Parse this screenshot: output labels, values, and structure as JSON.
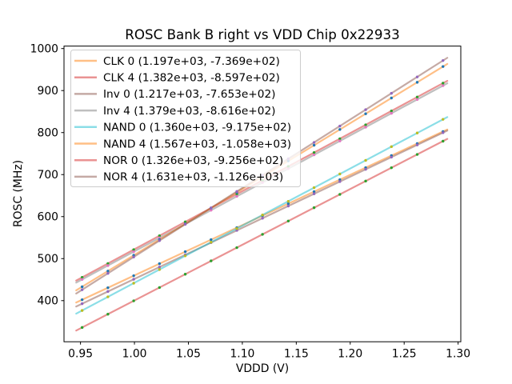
{
  "figure_bg": "#ffffff",
  "chart_data": {
    "type": "scatter",
    "title": "ROSC Bank B right vs VDD Chip 0x22933",
    "xlabel": "VDDD (V)",
    "ylabel": "ROSC (MHz)",
    "grid": false,
    "legend_position": "upper-left",
    "xlim": [
      0.9347,
      1.3025
    ],
    "ylim": [
      302.1,
      1005.9
    ],
    "xticks": {
      "values": [
        0.95,
        1.0,
        1.05,
        1.1,
        1.15,
        1.2,
        1.25,
        1.3
      ],
      "labels": [
        "0.95",
        "1.00",
        "1.05",
        "1.10",
        "1.15",
        "1.20",
        "1.25",
        "1.30"
      ]
    },
    "yticks": {
      "values": [
        400,
        500,
        600,
        700,
        800,
        900,
        1000
      ],
      "labels": [
        "400",
        "500",
        "600",
        "700",
        "800",
        "900",
        "1000"
      ]
    },
    "line_alpha": 0.5,
    "fit_x": [
      0.946,
      1.29
    ],
    "x": [
      0.9515,
      0.9754,
      0.9993,
      1.0232,
      1.0471,
      1.071,
      1.0949,
      1.1187,
      1.1426,
      1.1665,
      1.1904,
      1.2143,
      1.2382,
      1.2621,
      1.286
    ],
    "series": [
      {
        "name": "CLK 0",
        "legend_label": "CLK 0 (1.197e+03, -7.369e+02)",
        "fit_slope": 1197,
        "fit_intercept": -736.9,
        "line_color": "#ff7f0e",
        "marker_color": "#1f77b4",
        "y": [
          402.1,
          430.7,
          459.3,
          487.9,
          516.5,
          545.1,
          573.7,
          602.2,
          630.8,
          659.4,
          688.0,
          716.6,
          745.2,
          773.8,
          802.4
        ]
      },
      {
        "name": "CLK 4",
        "legend_label": "CLK 4 (1.382e+03, -8.597e+02)",
        "fit_slope": 1382,
        "fit_intercept": -859.7,
        "line_color": "#d62728",
        "marker_color": "#2ca02c",
        "y": [
          455.3,
          488.3,
          521.3,
          554.4,
          587.4,
          620.4,
          653.5,
          686.3,
          719.4,
          752.4,
          785.4,
          818.5,
          851.5,
          884.5,
          917.6
        ]
      },
      {
        "name": "Inv 0",
        "legend_label": "Inv 0 (1.217e+03, -7.653e+02)",
        "fit_slope": 1217,
        "fit_intercept": -765.3,
        "line_color": "#8c564b",
        "marker_color": "#9467bd",
        "y": [
          392.7,
          421.8,
          450.8,
          479.9,
          509.0,
          538.1,
          567.2,
          596.2,
          625.2,
          654.3,
          683.4,
          712.5,
          741.6,
          770.7,
          799.8
        ]
      },
      {
        "name": "Inv 4",
        "legend_label": "Inv 4 (1.379e+03, -8.616e+02)",
        "fit_slope": 1379,
        "fit_intercept": -861.6,
        "line_color": "#7f7f7f",
        "marker_color": "#e377c2",
        "y": [
          450.5,
          483.5,
          516.4,
          549.4,
          582.4,
          615.3,
          648.3,
          681.1,
          714.0,
          747.0,
          780.0,
          812.9,
          845.9,
          878.8,
          911.8
        ]
      },
      {
        "name": "NAND 0",
        "legend_label": "NAND 0 (1.360e+03, -9.175e+02)",
        "fit_slope": 1360,
        "fit_intercept": -917.5,
        "line_color": "#17becf",
        "marker_color": "#bcbd22",
        "y": [
          376.5,
          409.0,
          441.5,
          474.1,
          506.6,
          539.1,
          571.6,
          603.9,
          636.4,
          668.9,
          701.4,
          733.9,
          766.5,
          799.0,
          831.5
        ]
      },
      {
        "name": "NAND 4",
        "legend_label": "NAND 4 (1.567e+03, -1.058e+03)",
        "fit_slope": 1567,
        "fit_intercept": -1058,
        "line_color": "#ff7f0e",
        "marker_color": "#1f77b4",
        "y": [
          433.0,
          470.5,
          507.9,
          545.4,
          582.8,
          620.3,
          657.7,
          695.0,
          732.5,
          769.9,
          807.4,
          844.8,
          882.3,
          919.7,
          957.2
        ]
      },
      {
        "name": "NOR 0",
        "legend_label": "NOR 0 (1.326e+03, -9.256e+02)",
        "fit_slope": 1326,
        "fit_intercept": -925.6,
        "line_color": "#d62728",
        "marker_color": "#2ca02c",
        "y": [
          336.1,
          367.8,
          399.5,
          431.2,
          462.9,
          494.6,
          526.2,
          557.8,
          589.5,
          621.2,
          652.9,
          684.6,
          716.3,
          748.0,
          779.6
        ]
      },
      {
        "name": "NOR 4",
        "legend_label": "NOR 4 (1.631e+03, -1.126e+03)",
        "fit_slope": 1631,
        "fit_intercept": -1126,
        "line_color": "#8c564b",
        "marker_color": "#9467bd",
        "y": [
          425.9,
          464.9,
          503.9,
          542.8,
          581.8,
          620.8,
          659.8,
          698.6,
          737.6,
          776.6,
          815.5,
          854.5,
          893.5,
          932.5,
          971.5
        ]
      }
    ],
    "legend_frame": {
      "fill": "#ffffff",
      "fill_alpha": 0.8,
      "edge_color": "#cccccc"
    },
    "axis_color": "#000000"
  }
}
